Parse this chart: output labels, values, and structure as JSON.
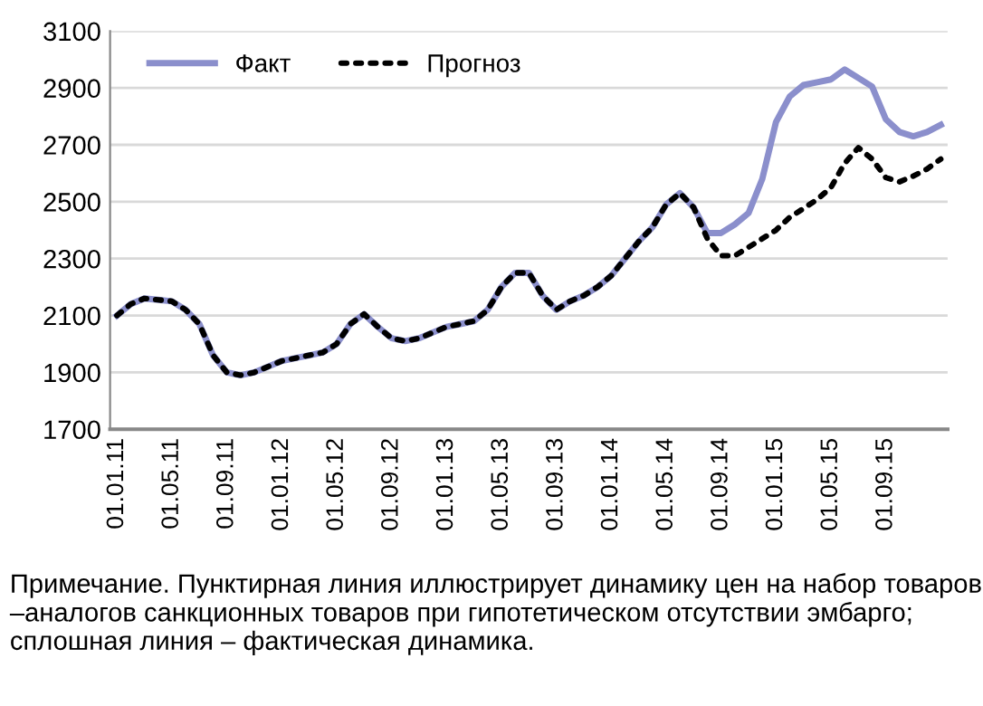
{
  "chart_data": {
    "type": "line",
    "categories": [
      "01.01.11",
      null,
      null,
      null,
      "01.05.11",
      null,
      null,
      null,
      "01.09.11",
      null,
      null,
      null,
      "01.01.12",
      null,
      null,
      null,
      "01.05.12",
      null,
      null,
      null,
      "01.09.12",
      null,
      null,
      null,
      "01.01.13",
      null,
      null,
      null,
      "01.05.13",
      null,
      null,
      null,
      "01.09.13",
      null,
      null,
      null,
      "01.01.14",
      null,
      null,
      null,
      "01.05.14",
      null,
      null,
      null,
      "01.09.14",
      null,
      null,
      null,
      "01.01.15",
      null,
      null,
      null,
      "01.05.15",
      null,
      null,
      null,
      "01.09.15",
      null,
      null,
      null,
      null
    ],
    "series": [
      {
        "name": "Факт",
        "color": "#8b8fcc",
        "line_style": "solid",
        "values": [
          2100,
          2140,
          2160,
          2155,
          2150,
          2120,
          2070,
          1960,
          1900,
          1890,
          1900,
          1920,
          1940,
          1950,
          1960,
          1970,
          2000,
          2070,
          2105,
          2060,
          2020,
          2010,
          2020,
          2040,
          2060,
          2070,
          2080,
          2120,
          2200,
          2250,
          2250,
          2170,
          2120,
          2150,
          2170,
          2200,
          2240,
          2300,
          2360,
          2410,
          2490,
          2530,
          2480,
          2390,
          2390,
          2420,
          2460,
          2580,
          2780,
          2870,
          2910,
          2920,
          2930,
          2965,
          2935,
          2905,
          2790,
          2745,
          2730,
          2745,
          2770
        ]
      },
      {
        "name": "Прогноз",
        "color": "#000000",
        "line_style": "dotted",
        "values": [
          2100,
          2140,
          2160,
          2155,
          2150,
          2120,
          2070,
          1960,
          1900,
          1890,
          1900,
          1920,
          1940,
          1950,
          1960,
          1970,
          2000,
          2070,
          2105,
          2060,
          2020,
          2010,
          2020,
          2040,
          2060,
          2070,
          2080,
          2120,
          2200,
          2250,
          2250,
          2170,
          2120,
          2150,
          2170,
          2200,
          2240,
          2300,
          2360,
          2410,
          2490,
          2530,
          2480,
          2370,
          2310,
          2310,
          2340,
          2370,
          2400,
          2445,
          2476,
          2508,
          2550,
          2635,
          2690,
          2650,
          2585,
          2570,
          2590,
          2615,
          2650
        ]
      }
    ],
    "ylim": [
      1700,
      3100
    ],
    "yticks": [
      1700,
      1900,
      2100,
      2300,
      2500,
      2700,
      2900,
      3100
    ],
    "grid": "y",
    "legend": "top left",
    "annotations": [
      "Примечание. Пунктирная линия иллюстрирует динамику цен на набор товаров –аналогов санкционных товаров при гипотетическом отсутствии эмбарго; сплошная линия – фактическая динамика."
    ]
  }
}
